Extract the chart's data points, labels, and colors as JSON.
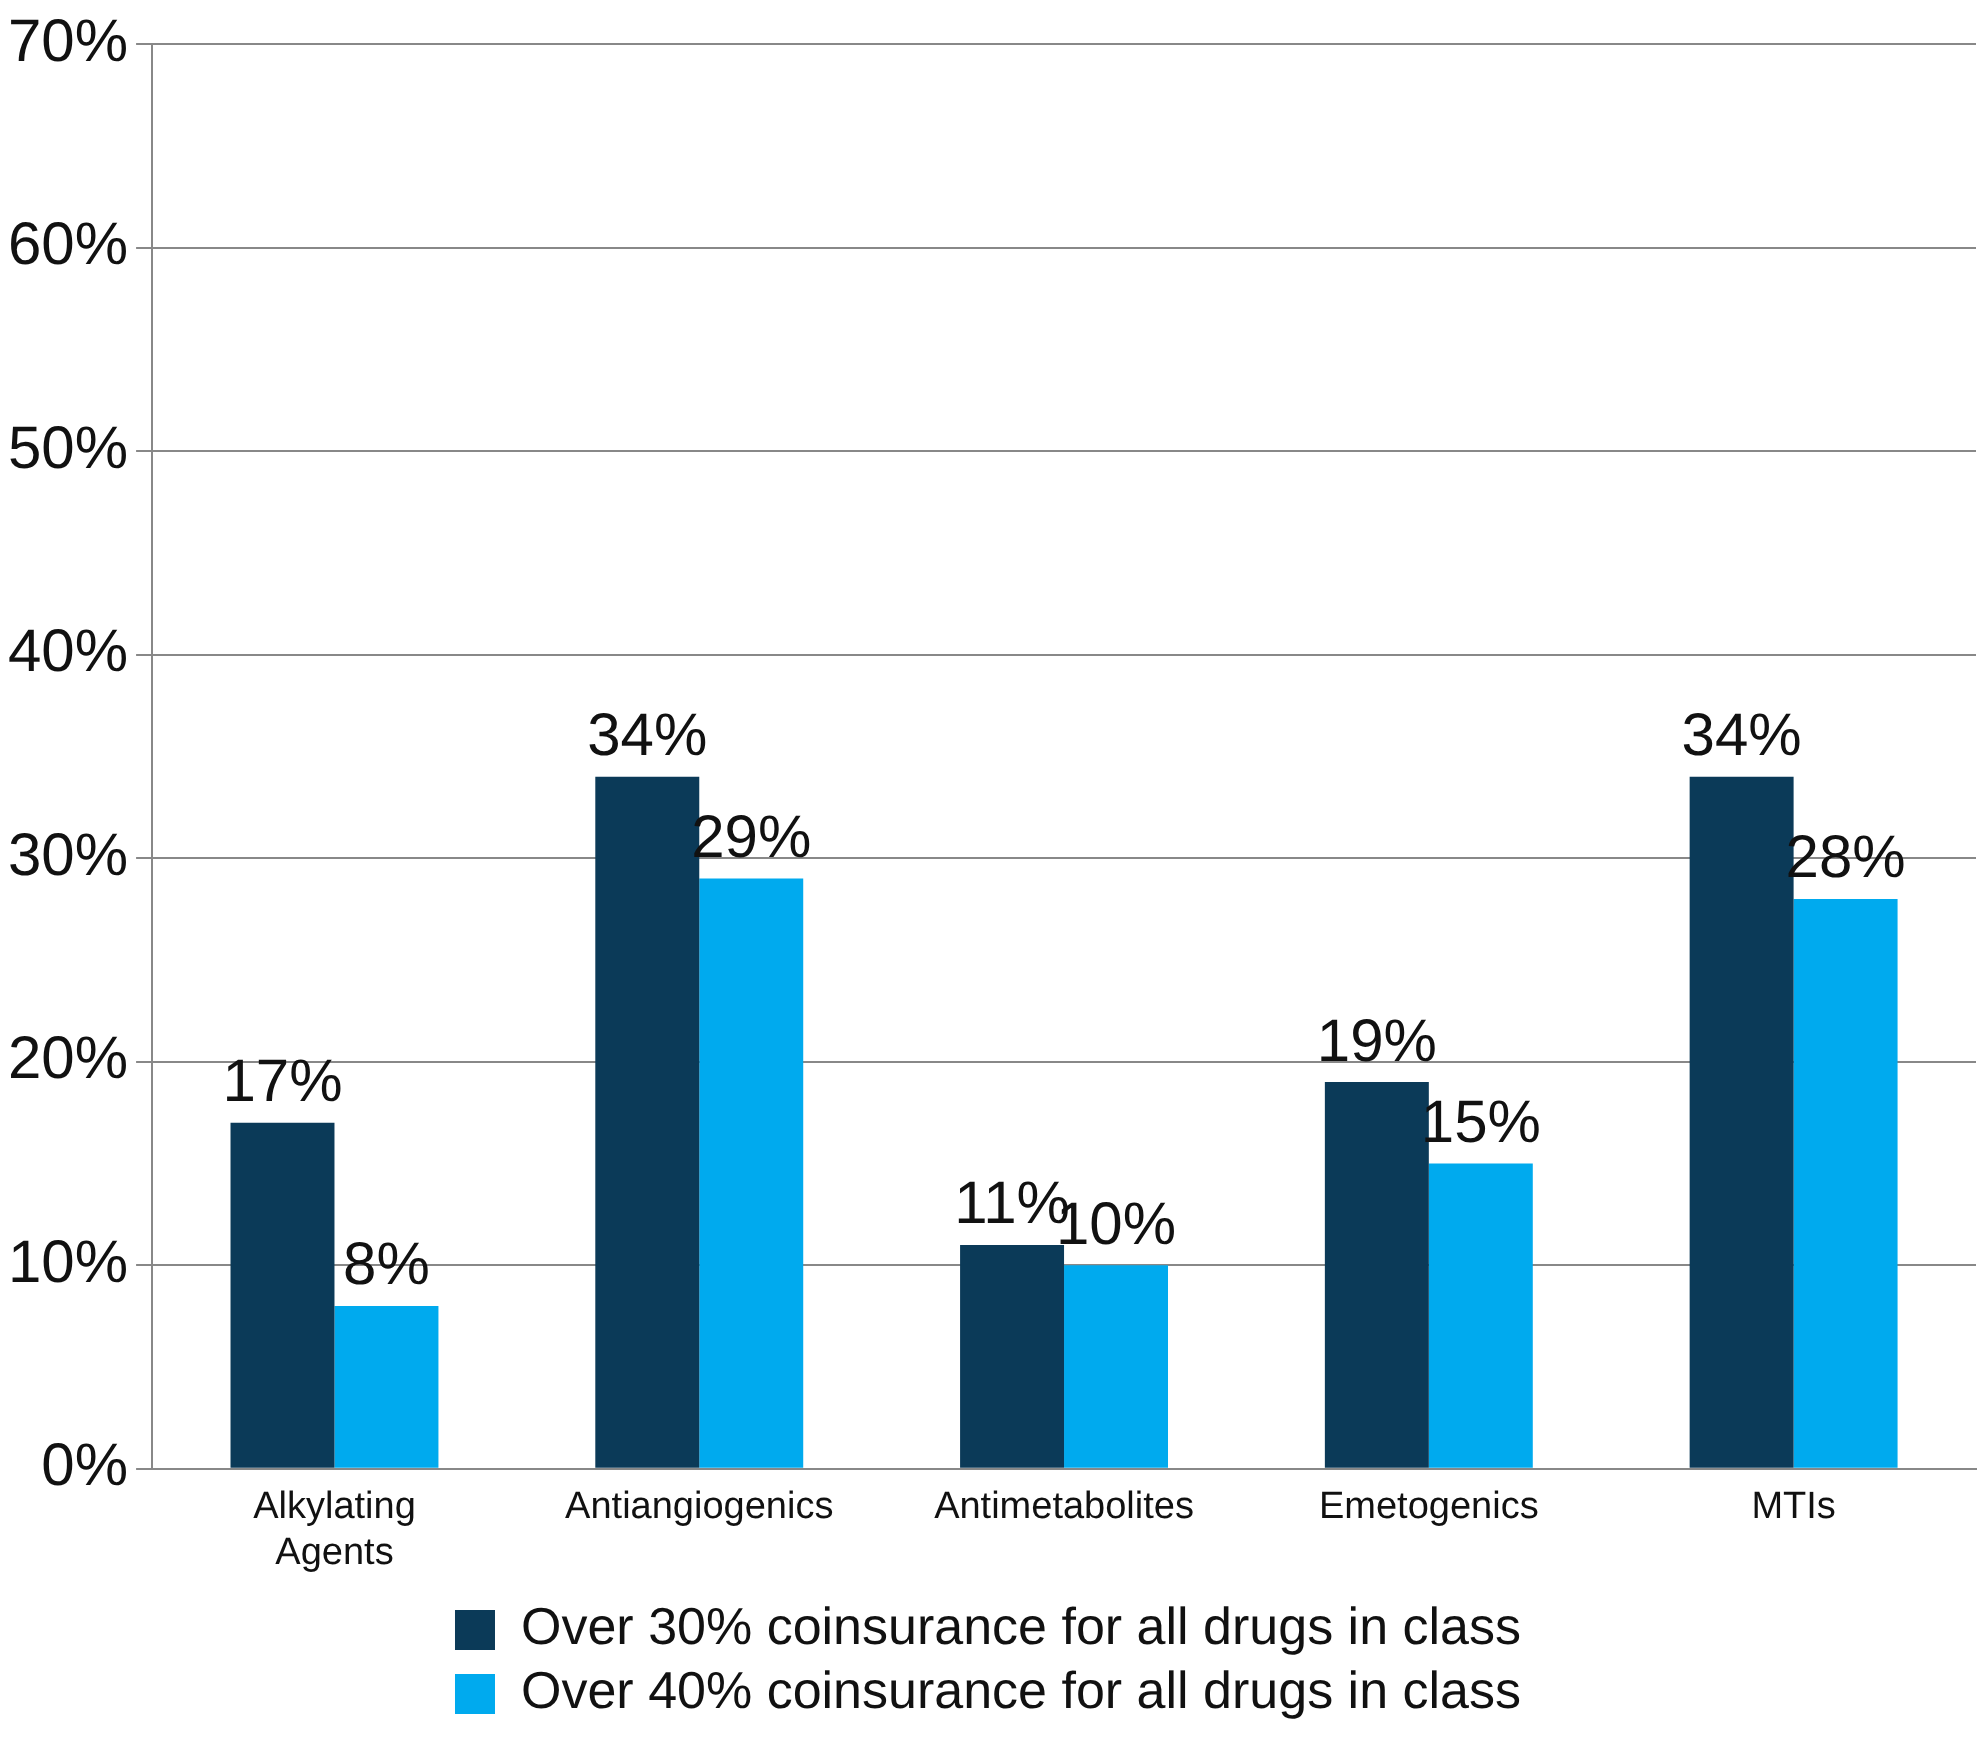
{
  "chart_data": {
    "type": "bar",
    "categories": [
      "Alkylating Agents",
      "Antiangiogenics",
      "Antimetabolites",
      "Emetogenics",
      "MTIs"
    ],
    "series": [
      {
        "name": "Over 30% coinsurance for all drugs in class",
        "color": "#0b3a58",
        "values": [
          17,
          34,
          11,
          19,
          34
        ],
        "value_labels": [
          "17%",
          "34%",
          "11%",
          "19%",
          "34%"
        ]
      },
      {
        "name": "Over 40% coinsurance for all drugs in class",
        "color": "#00aaee",
        "values": [
          8,
          29,
          10,
          15,
          28
        ],
        "value_labels": [
          "8%",
          "29%",
          "10%",
          "15%",
          "28%"
        ]
      }
    ],
    "ylim": [
      0,
      70
    ],
    "yticks": [
      {
        "value": 0,
        "label": "0%"
      },
      {
        "value": 10,
        "label": "10%"
      },
      {
        "value": 20,
        "label": "20%"
      },
      {
        "value": 30,
        "label": "30%"
      },
      {
        "value": 40,
        "label": "40%"
      },
      {
        "value": 50,
        "label": "50%"
      },
      {
        "value": 60,
        "label": "60%"
      },
      {
        "value": 70,
        "label": "70%"
      }
    ],
    "grid": "y",
    "legend": "bottom"
  }
}
